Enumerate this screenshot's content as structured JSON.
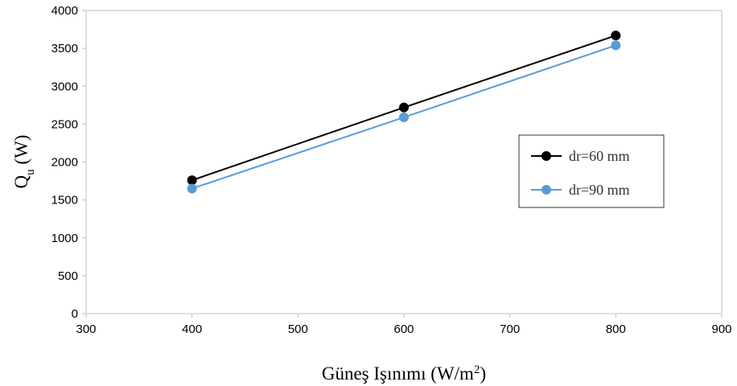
{
  "chart_data": {
    "type": "line",
    "xlabel": "Güneş Işınımı (W/m²)",
    "xlabel_main": "Güneş Işınımı (W/m",
    "xlabel_sup": "2",
    "xlabel_end": ")",
    "ylabel": "Qu (W)",
    "ylabel_main": "Q",
    "ylabel_sub": "u",
    "ylabel_end": " (W)",
    "xlim": [
      300,
      900
    ],
    "ylim": [
      0,
      4000
    ],
    "xticks": [
      300,
      400,
      500,
      600,
      700,
      800,
      900
    ],
    "yticks": [
      0,
      500,
      1000,
      1500,
      2000,
      2500,
      3000,
      3500,
      4000
    ],
    "grid": false,
    "legend_position": "right",
    "series": [
      {
        "name": "dr=60 mm",
        "color": "#000000",
        "x": [
          400,
          600,
          800
        ],
        "y": [
          1760,
          2720,
          3670
        ]
      },
      {
        "name": "dr=90 mm",
        "color": "#5B9BD5",
        "x": [
          400,
          600,
          800
        ],
        "y": [
          1650,
          2590,
          3540
        ]
      }
    ]
  }
}
